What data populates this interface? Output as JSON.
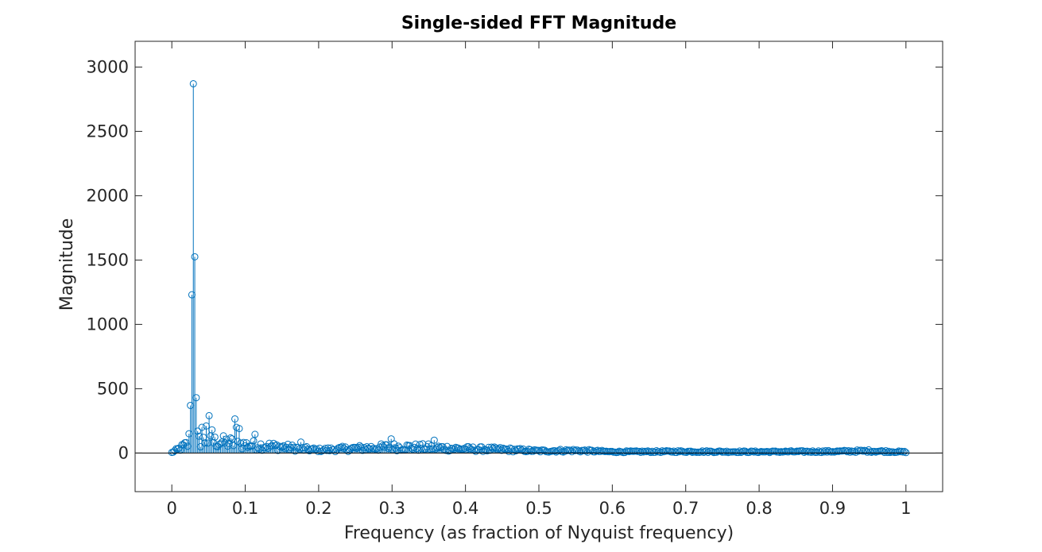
{
  "colors": {
    "series": "#0072BD",
    "axes": "#262626",
    "baseline": "#000000"
  },
  "chart_data": {
    "type": "stem",
    "title": "Single-sided FFT Magnitude",
    "xlabel": "Frequency (as fraction of Nyquist frequency)",
    "ylabel": "Magnitude",
    "xlim": [
      -0.05,
      1.05
    ],
    "ylim": [
      -300,
      3200
    ],
    "xticks": [
      0,
      0.1,
      0.2,
      0.3,
      0.4,
      0.5,
      0.6,
      0.7,
      0.8,
      0.9,
      1
    ],
    "xtick_labels": [
      "0",
      "0.1",
      "0.2",
      "0.3",
      "0.4",
      "0.5",
      "0.6",
      "0.7",
      "0.8",
      "0.9",
      "1"
    ],
    "yticks": [
      0,
      500,
      1000,
      1500,
      2000,
      2500,
      3000
    ],
    "ytick_labels": [
      "0",
      "500",
      "1000",
      "1500",
      "2000",
      "2500",
      "3000"
    ],
    "grid": false,
    "baseline": 0,
    "num_points": 513,
    "peaks": [
      {
        "x": 0.0234,
        "y": 150
      },
      {
        "x": 0.0254,
        "y": 370
      },
      {
        "x": 0.0273,
        "y": 1230
      },
      {
        "x": 0.0293,
        "y": 2870
      },
      {
        "x": 0.0313,
        "y": 1525
      },
      {
        "x": 0.0332,
        "y": 430
      },
      {
        "x": 0.0352,
        "y": 170
      },
      {
        "x": 0.041,
        "y": 200
      },
      {
        "x": 0.0469,
        "y": 210
      },
      {
        "x": 0.0508,
        "y": 290
      },
      {
        "x": 0.0547,
        "y": 180
      },
      {
        "x": 0.0859,
        "y": 265
      },
      {
        "x": 0.0859,
        "y": 200
      },
      {
        "x": 0.0918,
        "y": 190
      },
      {
        "x": 0.1133,
        "y": 145
      },
      {
        "x": 0.1758,
        "y": 85
      },
      {
        "x": 0.2988,
        "y": 110
      },
      {
        "x": 0.3574,
        "y": 100
      }
    ],
    "envelope": [
      {
        "x": 0.0,
        "y": 5
      },
      {
        "x": 0.01,
        "y": 40
      },
      {
        "x": 0.02,
        "y": 80
      },
      {
        "x": 0.04,
        "y": 120
      },
      {
        "x": 0.06,
        "y": 110
      },
      {
        "x": 0.08,
        "y": 100
      },
      {
        "x": 0.1,
        "y": 80
      },
      {
        "x": 0.13,
        "y": 70
      },
      {
        "x": 0.15,
        "y": 60
      },
      {
        "x": 0.18,
        "y": 40
      },
      {
        "x": 0.2,
        "y": 30
      },
      {
        "x": 0.25,
        "y": 45
      },
      {
        "x": 0.3,
        "y": 60
      },
      {
        "x": 0.35,
        "y": 55
      },
      {
        "x": 0.4,
        "y": 40
      },
      {
        "x": 0.45,
        "y": 35
      },
      {
        "x": 0.5,
        "y": 20
      },
      {
        "x": 0.55,
        "y": 25
      },
      {
        "x": 0.6,
        "y": 12
      },
      {
        "x": 0.7,
        "y": 15
      },
      {
        "x": 0.8,
        "y": 12
      },
      {
        "x": 0.9,
        "y": 15
      },
      {
        "x": 0.95,
        "y": 20
      },
      {
        "x": 1.0,
        "y": 10
      }
    ]
  }
}
